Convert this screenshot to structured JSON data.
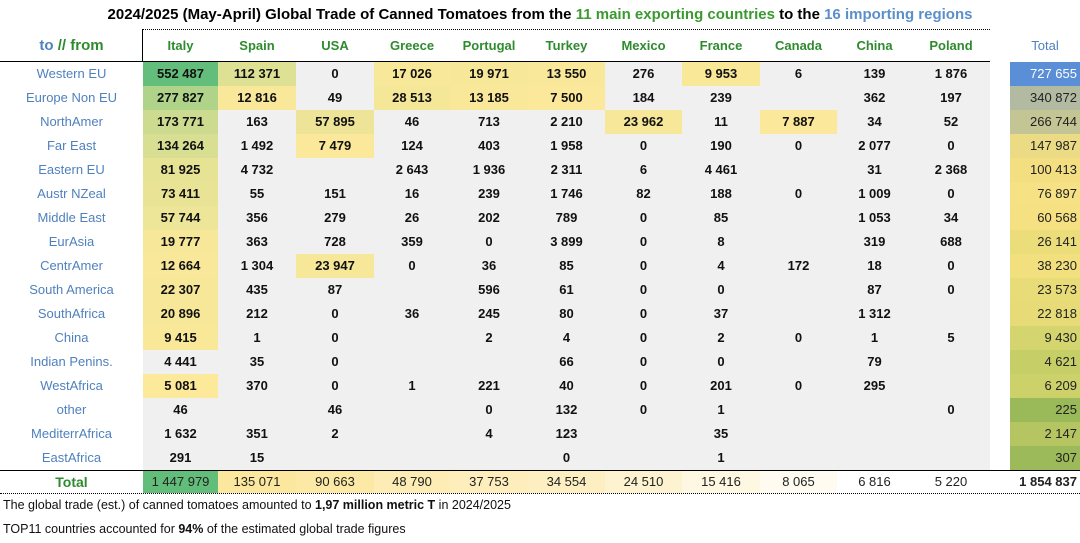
{
  "title": {
    "part1": "2024/2025 (May-April) Global Trade of Canned Tomatoes from the ",
    "part2": "11 main exporting countries",
    "part3": " to the ",
    "part4": "16 importing regions"
  },
  "corner": {
    "to": "to",
    "sep": " // ",
    "from": "from"
  },
  "columns": [
    "Italy",
    "Spain",
    "USA",
    "Greece",
    "Portugal",
    "Turkey",
    "Mexico",
    "France",
    "Canada",
    "China",
    "Poland"
  ],
  "total_header": "Total",
  "colors": {
    "low": "#fde99a",
    "high": "#63be7b",
    "label": "#4f81bd",
    "header": "#2e8b2e"
  },
  "highlight_threshold": 5000,
  "rows": [
    {
      "region": "Western EU",
      "values": [
        "552 487",
        "112 371",
        "0",
        "17 026",
        "19 971",
        "13 550",
        "276",
        "9 953",
        "6",
        "139",
        "1 876"
      ],
      "total": "727 655",
      "total_color": "#5a8ed6"
    },
    {
      "region": "Europe Non EU",
      "values": [
        "277 827",
        "12 816",
        "49",
        "28 513",
        "13 185",
        "7 500",
        "184",
        "239",
        "",
        "362",
        "197"
      ],
      "total": "340 872",
      "total_color": "#b2bba2"
    },
    {
      "region": "NorthAmer",
      "values": [
        "173 771",
        "163",
        "57 895",
        "46",
        "713",
        "2 210",
        "23 962",
        "11",
        "7 887",
        "34",
        "52"
      ],
      "total": "266 744",
      "total_color": "#c4c594"
    },
    {
      "region": "Far East",
      "values": [
        "134 264",
        "1 492",
        "7 479",
        "124",
        "403",
        "1 958",
        "0",
        "190",
        "0",
        "2 077",
        "0"
      ],
      "total": "147 987",
      "total_color": "#ecdb85"
    },
    {
      "region": "Eastern EU",
      "values": [
        "81 925",
        "4 732",
        "",
        "2 643",
        "1 936",
        "2 311",
        "6",
        "4 461",
        "",
        "31",
        "2 368"
      ],
      "total": "100 413",
      "total_color": "#f3df82"
    },
    {
      "region": "Austr NZeal",
      "values": [
        "73 411",
        "55",
        "151",
        "16",
        "239",
        "1 746",
        "82",
        "188",
        "0",
        "1 009",
        "0"
      ],
      "total": "76 897",
      "total_color": "#f6e184"
    },
    {
      "region": "Middle East",
      "values": [
        "57 744",
        "356",
        "279",
        "26",
        "202",
        "789",
        "0",
        "85",
        "",
        "1 053",
        "34"
      ],
      "total": "60 568",
      "total_color": "#f5e082"
    },
    {
      "region": "EurAsia",
      "values": [
        "19 777",
        "363",
        "728",
        "359",
        "0",
        "3 899",
        "0",
        "8",
        "",
        "319",
        "688"
      ],
      "total": "26 141",
      "total_color": "#ebdd7a"
    },
    {
      "region": "CentrAmer",
      "values": [
        "12 664",
        "1 304",
        "23 947",
        "0",
        "36",
        "85",
        "0",
        "4",
        "172",
        "18",
        "0"
      ],
      "total": "38 230",
      "total_color": "#f2e07e"
    },
    {
      "region": "South America",
      "values": [
        "22 307",
        "435",
        "87",
        "",
        "596",
        "61",
        "0",
        "0",
        "",
        "87",
        "0"
      ],
      "total": "23 573",
      "total_color": "#e8dc78"
    },
    {
      "region": "SouthAfrica",
      "values": [
        "20 896",
        "212",
        "0",
        "36",
        "245",
        "80",
        "0",
        "37",
        "",
        "1 312",
        ""
      ],
      "total": "22 818",
      "total_color": "#e6db77"
    },
    {
      "region": "China",
      "values": [
        "9 415",
        "1",
        "0",
        "",
        "2",
        "4",
        "0",
        "2",
        "0",
        "1",
        "5"
      ],
      "total": "9 430",
      "total_color": "#d4d56e"
    },
    {
      "region": "Indian Penins.",
      "values": [
        "4 441",
        "35",
        "0",
        "",
        "",
        "66",
        "0",
        "0",
        "",
        "79",
        ""
      ],
      "total": "4 621",
      "total_color": "#c6ce67"
    },
    {
      "region": "WestAfrica",
      "values": [
        "5 081",
        "370",
        "0",
        "1",
        "221",
        "40",
        "0",
        "201",
        "0",
        "295",
        ""
      ],
      "total": "6 209",
      "total_color": "#ccd16a"
    },
    {
      "region": "other",
      "values": [
        "46",
        "",
        "46",
        "",
        "0",
        "132",
        "0",
        "1",
        "",
        "",
        "0"
      ],
      "total": "225",
      "total_color": "#9ab958"
    },
    {
      "region": "MediterrAfrica",
      "values": [
        "1 632",
        "351",
        "2",
        "",
        "4",
        "123",
        "",
        "35",
        "",
        "",
        ""
      ],
      "total": "2 147",
      "total_color": "#b5c562"
    },
    {
      "region": "EastAfrica",
      "values": [
        "291",
        "15",
        "",
        "",
        "",
        "0",
        "",
        "1",
        "",
        "",
        ""
      ],
      "total": "307",
      "total_color": "#9cba59"
    }
  ],
  "total_row": {
    "label": "Total",
    "values": [
      "1 447 979",
      "135 071",
      "90 663",
      "48 790",
      "37 753",
      "34 554",
      "24 510",
      "15 416",
      "8 065",
      "6 816",
      "5 220"
    ],
    "colors": [
      "#62bd7a",
      "#fbe89e",
      "#fce9a6",
      "#fdecb3",
      "#fdeebc",
      "#fdefc1",
      "#fef3d0",
      "#fef7e2",
      "#fffbf1",
      "#ffffff",
      "#ffffff"
    ],
    "grand_total": "1 854 837"
  },
  "footer": {
    "line1_a": "The global trade (est.) of canned tomatoes amounted to ",
    "line1_b": "1,97 million metric T",
    "line1_c": " in 2024/2025",
    "line2_a": "TOP11 countries accounted for ",
    "line2_b": "94%",
    "line2_c": " of the estimated global trade figures"
  }
}
